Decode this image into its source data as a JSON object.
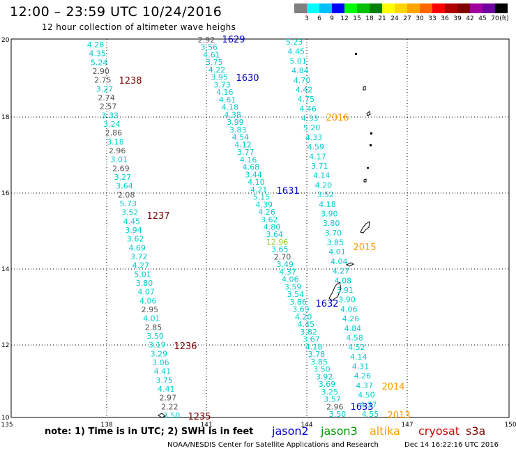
{
  "title": "12:00 – 23:59 UTC 10/24/2016",
  "subtitle": "12 hour collection of altimeter wave heighs",
  "colorbar": {
    "labels": [
      "3",
      "6",
      "9",
      "12",
      "15",
      "18",
      "21",
      "24",
      "27",
      "30",
      "33",
      "36",
      "39",
      "42",
      "45",
      "70"
    ],
    "unit": "(ft)",
    "colors": [
      "#7f7f7f",
      "#00ffff",
      "#00bfff",
      "#0000ff",
      "#00ff00",
      "#00c000",
      "#008000",
      "#ffff00",
      "#ffd700",
      "#ffa500",
      "#ff6600",
      "#ff0000",
      "#b00000",
      "#800000",
      "#a000a0",
      "#7000a0",
      "#000000"
    ]
  },
  "map": {
    "x_ticks": [
      "135",
      "138",
      "141",
      "144",
      "147",
      "150"
    ],
    "y_ticks": [
      "20",
      "18",
      "16",
      "14",
      "12",
      "10"
    ],
    "lon_range": [
      135,
      150
    ],
    "lat_range": [
      10,
      21
    ]
  },
  "passes": [
    {
      "id": "1238",
      "color": "#800000",
      "label_pos": "left"
    },
    {
      "id": "1237",
      "color": "#800000"
    },
    {
      "id": "1236",
      "color": "#800000"
    },
    {
      "id": "1235",
      "color": "#800000"
    },
    {
      "id": "1629",
      "color": "#0000cc"
    },
    {
      "id": "1630",
      "color": "#0000cc"
    },
    {
      "id": "1631",
      "color": "#0000cc"
    },
    {
      "id": "1632",
      "color": "#0000cc"
    },
    {
      "id": "1633",
      "color": "#0000cc"
    },
    {
      "id": "2016",
      "color": "#ff9900"
    },
    {
      "id": "2015",
      "color": "#ff9900"
    },
    {
      "id": "2014",
      "color": "#ff9900"
    },
    {
      "id": "2013",
      "color": "#ff9900"
    }
  ],
  "track_a": [
    [
      "4.28",
      "c"
    ],
    [
      "4.35",
      "c"
    ],
    [
      "5.24",
      "c"
    ],
    [
      "2.90",
      "g"
    ],
    [
      "2.75",
      "g"
    ],
    [
      "3.27",
      "c"
    ],
    [
      "2.74",
      "g"
    ],
    [
      "2.57",
      "g"
    ],
    [
      "3.33",
      "c"
    ],
    [
      "3.24",
      "c"
    ],
    [
      "2.86",
      "g"
    ],
    [
      "3.18",
      "c"
    ],
    [
      "2.96",
      "g"
    ],
    [
      "3.01",
      "c"
    ],
    [
      "2.69",
      "g"
    ],
    [
      "3.27",
      "c"
    ],
    [
      "3.64",
      "c"
    ],
    [
      "2.08",
      "g"
    ],
    [
      "5.73",
      "c"
    ],
    [
      "3.52",
      "c"
    ],
    [
      "4.45",
      "c"
    ],
    [
      "3.94",
      "c"
    ],
    [
      "3.62",
      "c"
    ],
    [
      "4.69",
      "c"
    ],
    [
      "3.72",
      "c"
    ],
    [
      "4.27",
      "c"
    ],
    [
      "5.01",
      "c"
    ],
    [
      "3.80",
      "c"
    ],
    [
      "4.07",
      "c"
    ],
    [
      "4.06",
      "c"
    ],
    [
      "2.95",
      "g"
    ],
    [
      "4.01",
      "c"
    ],
    [
      "2.85",
      "g"
    ],
    [
      "3.50",
      "c"
    ],
    [
      "3.19",
      "c"
    ],
    [
      "3.29",
      "c"
    ],
    [
      "3.06",
      "c"
    ],
    [
      "4.41",
      "c"
    ],
    [
      "3.75",
      "c"
    ],
    [
      "4.41",
      "c"
    ],
    [
      "2.97",
      "g"
    ],
    [
      "2.22",
      "g"
    ],
    [
      "3.50",
      "c"
    ]
  ],
  "track_b": [
    [
      "2.92",
      "g"
    ],
    [
      "3.56",
      "c"
    ],
    [
      "4.61",
      "c"
    ],
    [
      "3.75",
      "c"
    ],
    [
      "4.22",
      "c"
    ],
    [
      "3.95",
      "c"
    ],
    [
      "3.73",
      "c"
    ],
    [
      "4.16",
      "c"
    ],
    [
      "4.61",
      "c"
    ],
    [
      "4.18",
      "c"
    ],
    [
      "4.38",
      "c"
    ],
    [
      "3.99",
      "c"
    ],
    [
      "3.83",
      "c"
    ],
    [
      "4.54",
      "c"
    ],
    [
      "4.12",
      "c"
    ],
    [
      "3.77",
      "c"
    ],
    [
      "4.16",
      "c"
    ],
    [
      "4.68",
      "c"
    ],
    [
      "3.44",
      "c"
    ],
    [
      "4.10",
      "c"
    ],
    [
      "4.21",
      "c"
    ],
    [
      "5.15",
      "c"
    ],
    [
      "4.39",
      "c"
    ],
    [
      "4.26",
      "c"
    ],
    [
      "3.62",
      "c"
    ],
    [
      "4.80",
      "c"
    ],
    [
      "3.64",
      "c"
    ],
    [
      "12.96",
      "y"
    ],
    [
      "3.65",
      "c"
    ],
    [
      "2.70",
      "g"
    ],
    [
      "3.49",
      "c"
    ],
    [
      "4.37",
      "c"
    ],
    [
      "4.06",
      "c"
    ],
    [
      "3.59",
      "c"
    ],
    [
      "3.54",
      "c"
    ],
    [
      "3.86",
      "c"
    ],
    [
      "3.69",
      "c"
    ],
    [
      "4.20",
      "c"
    ],
    [
      "4.45",
      "c"
    ],
    [
      "3.82",
      "c"
    ],
    [
      "3.67",
      "c"
    ],
    [
      "4.18",
      "c"
    ],
    [
      "3.78",
      "c"
    ],
    [
      "3.85",
      "c"
    ],
    [
      "3.50",
      "c"
    ],
    [
      "3.92",
      "c"
    ],
    [
      "3.69",
      "c"
    ],
    [
      "3.25",
      "c"
    ],
    [
      "3.57",
      "c"
    ],
    [
      "2.96",
      "g"
    ],
    [
      "3.50",
      "c"
    ]
  ],
  "track_c": [
    [
      "5.23",
      "c"
    ],
    [
      "4.45",
      "c"
    ],
    [
      "5.01",
      "c"
    ],
    [
      "4.84",
      "c"
    ],
    [
      "4.70",
      "c"
    ],
    [
      "4.42",
      "c"
    ],
    [
      "4.75",
      "c"
    ],
    [
      "4.46",
      "c"
    ],
    [
      "4.33",
      "c"
    ],
    [
      "5.20",
      "c"
    ],
    [
      "4.33",
      "c"
    ],
    [
      "4.59",
      "c"
    ],
    [
      "4.17",
      "c"
    ],
    [
      "3.71",
      "c"
    ],
    [
      "4.14",
      "c"
    ],
    [
      "4.20",
      "c"
    ],
    [
      "3.52",
      "c"
    ],
    [
      "4.18",
      "c"
    ],
    [
      "3.90",
      "c"
    ],
    [
      "3.80",
      "c"
    ],
    [
      "3.70",
      "c"
    ],
    [
      "3.85",
      "c"
    ],
    [
      "4.01",
      "c"
    ],
    [
      "4.04",
      "c"
    ],
    [
      "4.27",
      "c"
    ],
    [
      "4.08",
      "c"
    ],
    [
      "3.91",
      "c"
    ],
    [
      "3.90",
      "c"
    ],
    [
      "4.06",
      "c"
    ],
    [
      "4.26",
      "c"
    ],
    [
      "4.84",
      "c"
    ],
    [
      "4.58",
      "c"
    ],
    [
      "4.52",
      "c"
    ],
    [
      "4.14",
      "c"
    ],
    [
      "4.31",
      "c"
    ],
    [
      "4.26",
      "c"
    ],
    [
      "4.37",
      "c"
    ],
    [
      "4.50",
      "c"
    ],
    [
      "4.37",
      "c"
    ],
    [
      "4.55",
      "c"
    ]
  ],
  "note": "note: 1) Time is in UTC; 2) SWH is in feet",
  "satellites": [
    {
      "name": "jason2",
      "color": "#0000cc"
    },
    {
      "name": "jason3",
      "color": "#009900"
    },
    {
      "name": "altika",
      "color": "#ff9900"
    },
    {
      "name": "cryosat",
      "color": "#cc0000"
    },
    {
      "name": "s3a",
      "color": "#800000"
    }
  ],
  "credit": "NOAA/NESDIS Center for Satellite Applications and Research",
  "timestamp": "Dec 14 16:22:16 UTC 2016"
}
